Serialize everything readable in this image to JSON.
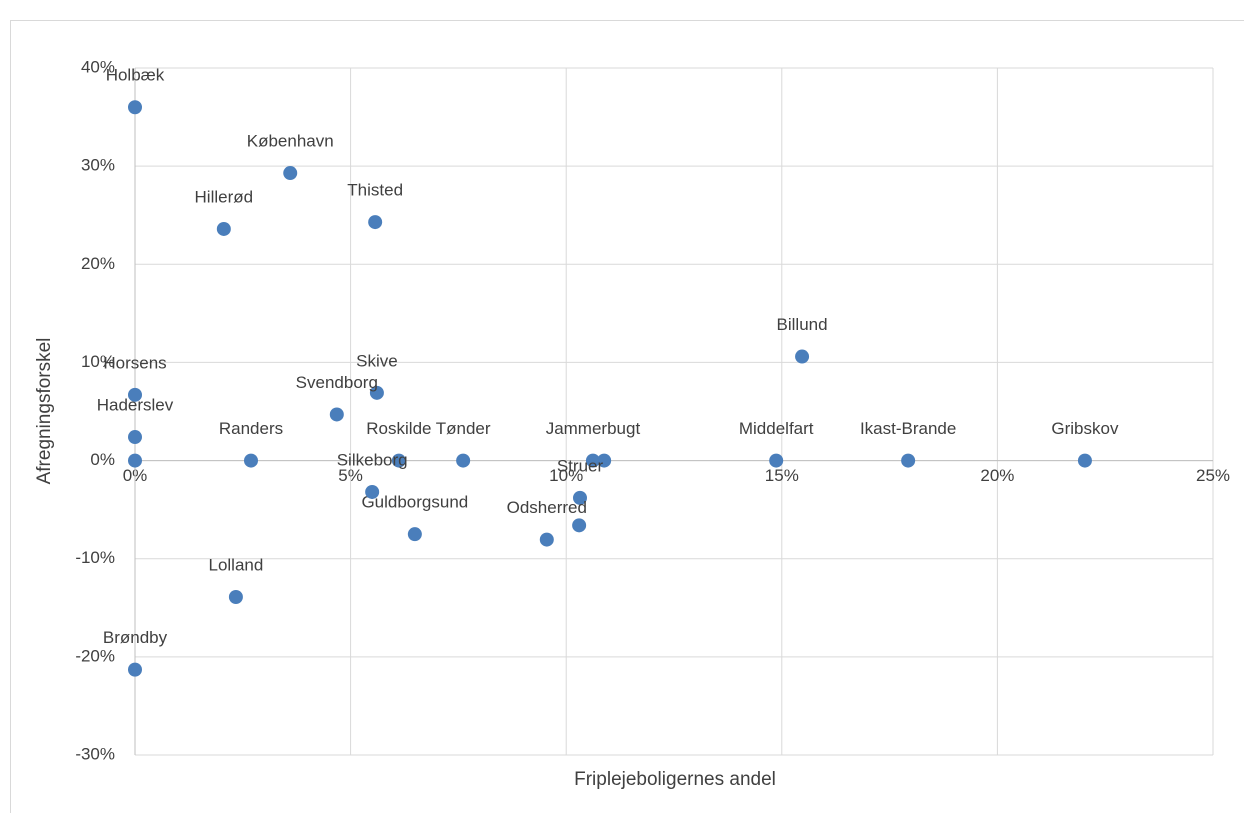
{
  "chart_data": {
    "type": "scatter",
    "x_label": "Friplejeboligernes andel",
    "y_label": "Afregningsforskel",
    "x": [
      0,
      3.6,
      2.06,
      5.57,
      15.47,
      0,
      5.61,
      4.68,
      0,
      0,
      2.69,
      6.12,
      7.61,
      10.62,
      10.88,
      10.32,
      9.55,
      10.3,
      6.49,
      5.5,
      2.34,
      0,
      14.87,
      17.93,
      22.03
    ],
    "series": [
      {
        "name": null,
        "color": "#4a7ebb",
        "values": [
          36.0,
          29.3,
          23.6,
          24.3,
          10.6,
          6.7,
          6.9,
          4.7,
          2.4,
          0,
          0,
          0,
          0,
          0,
          0,
          -3.8,
          -8.05,
          -6.6,
          -7.5,
          -3.2,
          -13.9,
          -21.3,
          0,
          0,
          0
        ]
      }
    ],
    "labels": [
      "Holbæk",
      "København",
      "Hillerød",
      "Thisted",
      "Billund",
      "Horsens",
      "Skive",
      "Svendborg",
      "Haderslev",
      null,
      "Randers",
      "Roskilde",
      "Tønder",
      "Jammerbugt",
      null,
      "Struer",
      "Odsherred",
      null,
      "Guldborgsund",
      "Silkeborg",
      "Lolland",
      "Brøndby",
      "Middelfart",
      "Ikast-Brande",
      "Gribskov"
    ],
    "xlim": [
      0,
      25
    ],
    "xticks": [
      {
        "value": 0,
        "label": "0%"
      },
      {
        "value": 5,
        "label": "5%"
      },
      {
        "value": 10,
        "label": "10%"
      },
      {
        "value": 15,
        "label": "15%"
      },
      {
        "value": 20,
        "label": "20%"
      },
      {
        "value": 25,
        "label": "25%"
      }
    ],
    "ylim": [
      -30,
      40
    ],
    "yticks": [
      {
        "value": -30,
        "label": "-30%"
      },
      {
        "value": -20,
        "label": "-20%"
      },
      {
        "value": -10,
        "label": "-10%"
      },
      {
        "value": 0,
        "label": "0%"
      },
      {
        "value": 10,
        "label": "10%"
      },
      {
        "value": 20,
        "label": "20%"
      },
      {
        "value": 30,
        "label": "30%"
      },
      {
        "value": 40,
        "label": "40%"
      }
    ],
    "grid": true
  }
}
